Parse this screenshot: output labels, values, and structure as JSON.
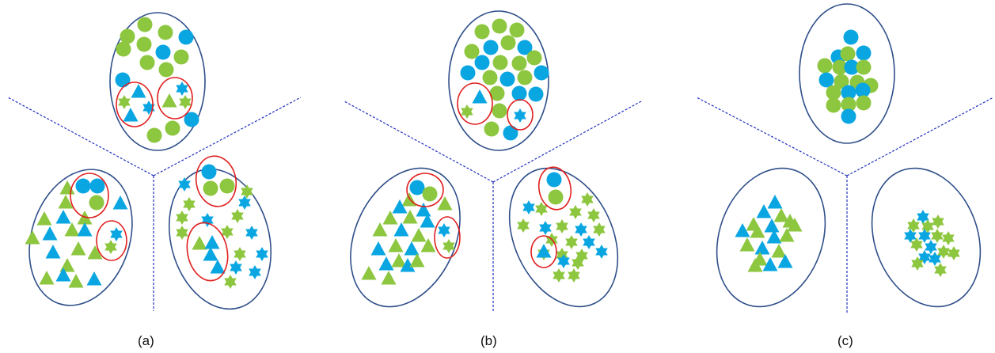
{
  "captions": [
    "(a)",
    "(b)",
    "(c)"
  ],
  "colors": {
    "green": "#8dc63f",
    "blue": "#0aa6e2",
    "ellipse_stroke": "#2f4f8a",
    "highlight_ring": "#e02020",
    "divider": "#1f2fbf"
  },
  "shape_legend": [
    "circle",
    "triangle",
    "star"
  ]
}
